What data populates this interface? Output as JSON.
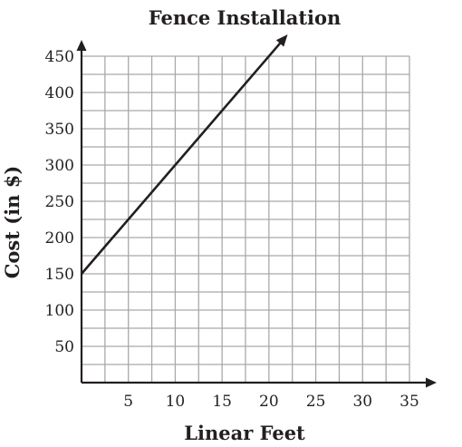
{
  "chart_data": {
    "type": "line",
    "title": "Fence Installation",
    "xlabel": "Linear Feet",
    "ylabel": "Cost (in $)",
    "xlim": [
      0,
      35
    ],
    "ylim": [
      0,
      450
    ],
    "x_ticks": [
      5,
      10,
      15,
      20,
      25,
      30,
      35
    ],
    "y_ticks": [
      50,
      100,
      150,
      200,
      250,
      300,
      350,
      400,
      450
    ],
    "grid": true,
    "grid_x_step": 2.5,
    "grid_y_step": 25,
    "series": [
      {
        "x": [
          0,
          22
        ],
        "y": [
          150,
          480
        ],
        "color": "#231f20"
      }
    ],
    "line_end_arrow": true,
    "axis_arrows": true,
    "colors": {
      "grid": "#a7a9ac",
      "axis": "#231f20",
      "line": "#231f20"
    }
  }
}
